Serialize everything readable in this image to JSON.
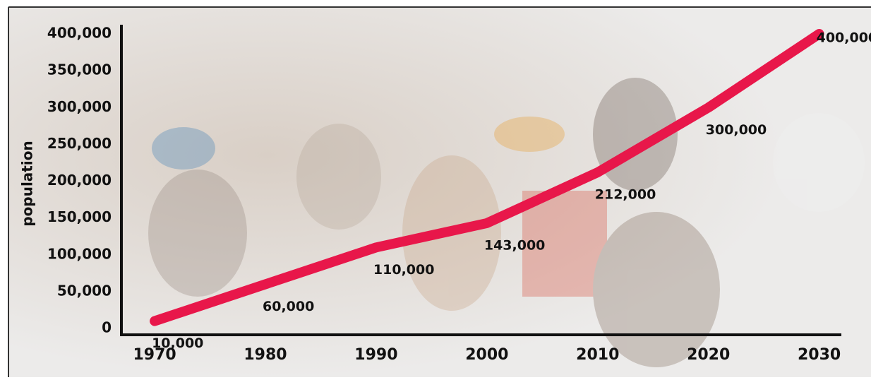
{
  "chart_data": {
    "type": "line",
    "y_label": "population",
    "x": [
      1970,
      1980,
      1990,
      2000,
      2010,
      2020,
      2030
    ],
    "values": [
      10000,
      60000,
      110000,
      143000,
      212000,
      300000,
      400000
    ],
    "value_labels": [
      "10,000",
      "60,000",
      "110,000",
      "143,000",
      "212,000",
      "300,000",
      "400,000"
    ],
    "color": "#e8174a",
    "xlim": [
      1967,
      2032
    ],
    "xticks": [
      1970,
      1980,
      1990,
      2000,
      2010,
      2020,
      2030
    ],
    "ylim": [
      0,
      400000
    ],
    "yticks": [
      0,
      {
        "value": 50000,
        "label": "50,000"
      },
      {
        "value": 100000,
        "label": "100,000"
      },
      {
        "value": 150000,
        "label": "150,000"
      },
      {
        "value": 200000,
        "label": "200,000"
      },
      {
        "value": 250000,
        "label": "250,000"
      },
      {
        "value": 300000,
        "label": "300,000"
      },
      {
        "value": 350000,
        "label": "350,000"
      },
      {
        "value": 400000,
        "label": "400,000"
      }
    ]
  }
}
